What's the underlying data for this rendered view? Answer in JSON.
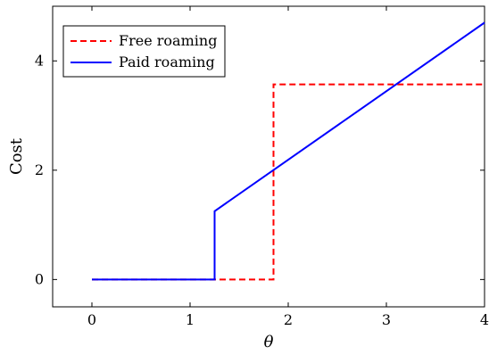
{
  "chart_data": {
    "type": "line",
    "xlabel": "θ",
    "ylabel": "Cost",
    "xlim": [
      -0.4,
      4.0
    ],
    "ylim": [
      -0.5,
      5.0
    ],
    "x_ticks": [
      "0",
      "1",
      "2",
      "3",
      "4"
    ],
    "y_ticks": [
      "0",
      "2",
      "4"
    ],
    "legend_position": "top-left",
    "grid": false,
    "series": [
      {
        "name": "Free roaming",
        "color": "#ff0000",
        "style": "dashed",
        "points": [
          [
            0,
            0
          ],
          [
            1.85,
            0
          ],
          [
            1.85,
            3.57
          ],
          [
            4.0,
            3.57
          ]
        ]
      },
      {
        "name": "Paid roaming",
        "color": "#0000ff",
        "style": "solid",
        "points": [
          [
            0,
            0
          ],
          [
            1.25,
            0
          ],
          [
            1.25,
            1.25
          ],
          [
            4.0,
            4.7
          ]
        ]
      }
    ]
  }
}
